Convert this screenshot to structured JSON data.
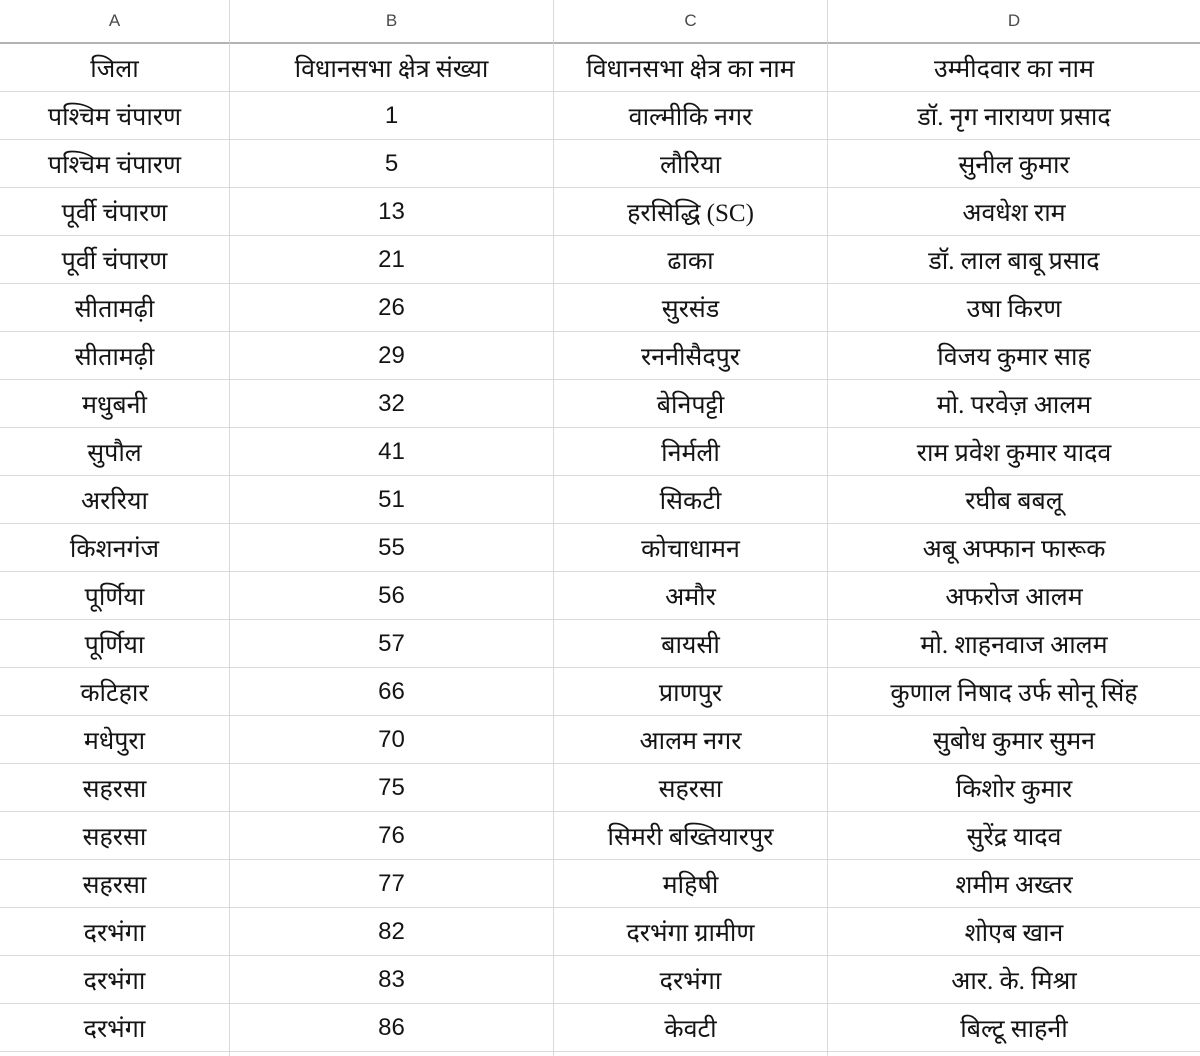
{
  "sheet": {
    "column_letters": [
      "A",
      "B",
      "C",
      "D"
    ],
    "header": [
      "जिला",
      "विधानसभा क्षेत्र संख्या",
      "विधानसभा क्षेत्र का नाम",
      "उम्मीदवार का नाम"
    ],
    "rows": [
      [
        "पश्चिम चंपारण",
        "1",
        "वाल्मीकि नगर",
        "डॉ. नृग नारायण प्रसाद"
      ],
      [
        "पश्चिम चंपारण",
        "5",
        "लौरिया",
        "सुनील कुमार"
      ],
      [
        "पूर्वी चंपारण",
        "13",
        "हरसिद्धि (SC)",
        "अवधेश राम"
      ],
      [
        "पूर्वी चंपारण",
        "21",
        "ढाका",
        "डॉ. लाल बाबू प्रसाद"
      ],
      [
        "सीतामढ़ी",
        "26",
        "सुरसंड",
        "उषा किरण"
      ],
      [
        "सीतामढ़ी",
        "29",
        "रननीसैदपुर",
        "विजय कुमार साह"
      ],
      [
        "मधुबनी",
        "32",
        "बेनिपट्टी",
        "मो. परवेज़ आलम"
      ],
      [
        "सुपौल",
        "41",
        "निर्मली",
        "राम प्रवेश कुमार यादव"
      ],
      [
        "अररिया",
        "51",
        "सिकटी",
        "रघीब बबलू"
      ],
      [
        "किशनगंज",
        "55",
        "कोचाधामन",
        "अबू अफ्फान फारूक"
      ],
      [
        "पूर्णिया",
        "56",
        "अमौर",
        "अफरोज आलम"
      ],
      [
        "पूर्णिया",
        "57",
        "बायसी",
        "मो. शाहनवाज आलम"
      ],
      [
        "कटिहार",
        "66",
        "प्राणपुर",
        "कुणाल निषाद उर्फ सोनू सिंह"
      ],
      [
        "मधेपुरा",
        "70",
        "आलम नगर",
        "सुबोध कुमार सुमन"
      ],
      [
        "सहरसा",
        "75",
        "सहरसा",
        "किशोर कुमार"
      ],
      [
        "सहरसा",
        "76",
        "सिमरी बख्तियारपुर",
        "सुरेंद्र यादव"
      ],
      [
        "सहरसा",
        "77",
        "महिषी",
        "शमीम अख्तर"
      ],
      [
        "दरभंगा",
        "82",
        "दरभंगा ग्रामीण",
        "शोएब खान"
      ],
      [
        "दरभंगा",
        "83",
        "दरभंगा",
        "आर. के. मिश्रा"
      ],
      [
        "दरभंगा",
        "86",
        "केवटी",
        "बिल्टू साहनी"
      ]
    ],
    "colors": {
      "background": "#ffffff",
      "gridline": "#d9d9d9",
      "column_strip_border": "#b3b3b3",
      "column_letter_text": "#4a4a4a",
      "cell_text": "#141414"
    }
  }
}
